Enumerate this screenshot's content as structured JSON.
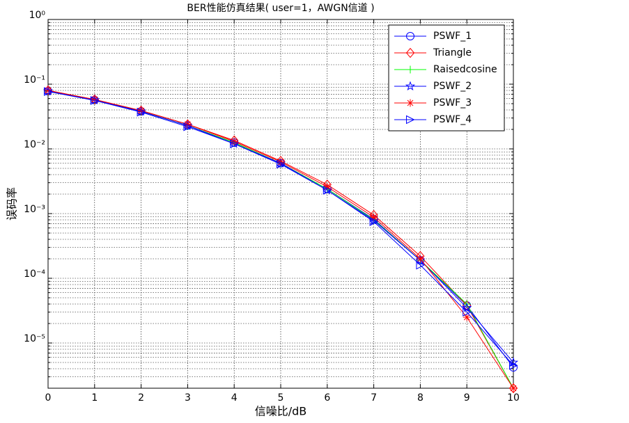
{
  "chart_data": {
    "type": "line",
    "title": "BER性能仿真结果( user=1，AWGN信道 )",
    "x_label": "信噪比/dB",
    "y_label": "误码率",
    "x": [
      0,
      1,
      2,
      3,
      4,
      5,
      6,
      7,
      8,
      9,
      10
    ],
    "xlim": [
      0,
      10
    ],
    "xticks": [
      0,
      1,
      2,
      3,
      4,
      5,
      6,
      7,
      8,
      9,
      10
    ],
    "ylim": [
      2e-06,
      1
    ],
    "yscale": "log",
    "yticks": [
      {
        "value": 1,
        "label": "10⁰"
      },
      {
        "value": 0.1,
        "label": "10⁻¹"
      },
      {
        "value": 0.01,
        "label": "10⁻²"
      },
      {
        "value": 0.001,
        "label": "10⁻³"
      },
      {
        "value": 0.0001,
        "label": "10⁻⁴"
      },
      {
        "value": 1e-05,
        "label": "10⁻⁵"
      }
    ],
    "grid": true,
    "minor_grid": true,
    "legend": "upper right",
    "series": [
      {
        "name": "PSWF_1",
        "color": "#0000ff",
        "marker": "o",
        "values": [
          0.078,
          0.057,
          0.038,
          0.023,
          0.0125,
          0.006,
          0.0024,
          0.00082,
          0.00019,
          3.8e-05,
          4.2e-06
        ]
      },
      {
        "name": "Triangle",
        "color": "#ff0000",
        "marker": "d",
        "values": [
          0.08,
          0.058,
          0.039,
          0.024,
          0.0135,
          0.0065,
          0.0028,
          0.00095,
          0.00022,
          3.8e-05,
          2e-06
        ]
      },
      {
        "name": "Raisedcosine",
        "color": "#00ff00",
        "marker": "+",
        "values": [
          0.078,
          0.057,
          0.038,
          0.023,
          0.0125,
          0.006,
          0.0024,
          0.0008,
          0.00019,
          4e-05,
          2e-06
        ]
      },
      {
        "name": "PSWF_2",
        "color": "#0000ff",
        "marker": "p",
        "values": [
          0.078,
          0.057,
          0.038,
          0.023,
          0.012,
          0.006,
          0.0023,
          0.00078,
          0.00019,
          3.5e-05,
          5e-06
        ]
      },
      {
        "name": "PSWF_3",
        "color": "#ff0000",
        "marker": "*",
        "values": [
          0.08,
          0.058,
          0.039,
          0.024,
          0.013,
          0.0063,
          0.0026,
          0.00088,
          0.0002,
          2.5e-05,
          2e-06
        ]
      },
      {
        "name": "PSWF_4",
        "color": "#0000ff",
        "marker": ">",
        "values": [
          0.077,
          0.056,
          0.037,
          0.022,
          0.012,
          0.0058,
          0.0023,
          0.00075,
          0.00016,
          3e-05,
          4.5e-06
        ]
      }
    ]
  }
}
